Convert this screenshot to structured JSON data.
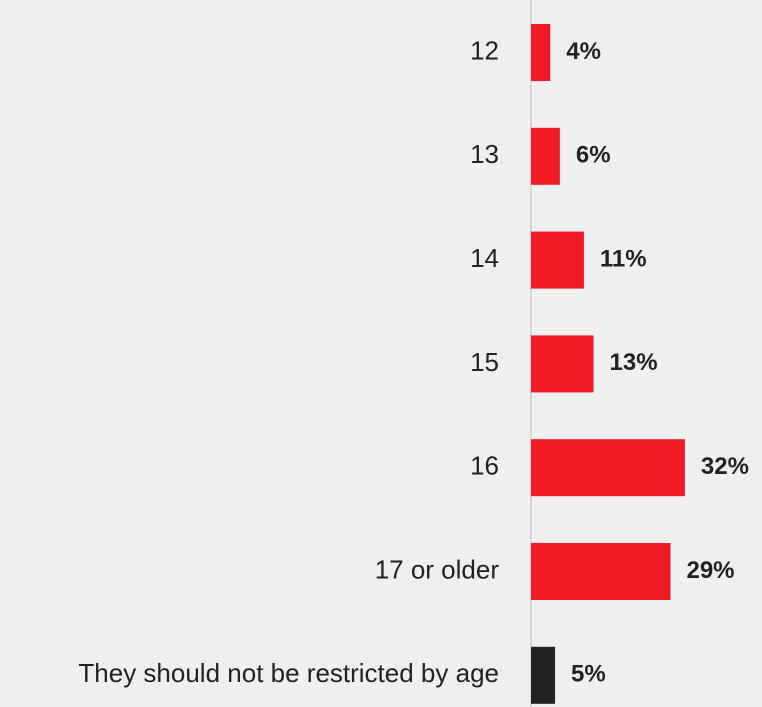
{
  "chart_data": {
    "type": "bar",
    "orientation": "horizontal",
    "categories": [
      "12",
      "13",
      "14",
      "15",
      "16",
      "17 or older",
      "They should not be restricted by age"
    ],
    "values": [
      4,
      6,
      11,
      13,
      32,
      29,
      5
    ],
    "value_labels": [
      "4%",
      "6%",
      "11%",
      "13%",
      "32%",
      "29%",
      "5%"
    ],
    "unit": "%",
    "colors": [
      "#ed1c24",
      "#ed1c24",
      "#ed1c24",
      "#ed1c24",
      "#ed1c24",
      "#ed1c24",
      "#222222"
    ],
    "title": "",
    "xlabel": "",
    "ylabel": "",
    "xlim": [
      0,
      34
    ],
    "grid": false,
    "legend": "none"
  }
}
